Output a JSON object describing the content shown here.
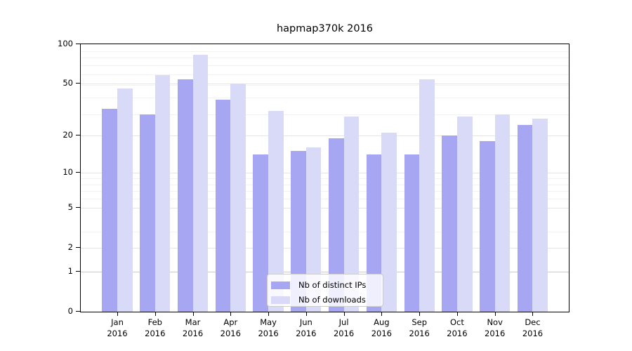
{
  "title": "hapmap370k 2016",
  "chart_data": {
    "type": "bar",
    "scale": "log1p",
    "grid": "horizontal",
    "legend_position": "lower center",
    "categories": [
      "Jan",
      "Feb",
      "Mar",
      "Apr",
      "May",
      "Jun",
      "Jul",
      "Aug",
      "Sep",
      "Oct",
      "Nov",
      "Dec"
    ],
    "year_label": "2016",
    "yticks": [
      0,
      1,
      2,
      5,
      10,
      20,
      50,
      100
    ],
    "ylim": [
      0,
      100
    ],
    "series": [
      {
        "name": "Nb of distinct IPs",
        "color": "#a6a6f2",
        "values": [
          32,
          29,
          54,
          38,
          14,
          15,
          19,
          14,
          14,
          20,
          18,
          24
        ]
      },
      {
        "name": "Nb of downloads",
        "color": "#d9d9f8",
        "values": [
          46,
          58,
          83,
          50,
          31,
          16,
          28,
          21,
          54,
          28,
          29,
          27
        ]
      }
    ]
  }
}
